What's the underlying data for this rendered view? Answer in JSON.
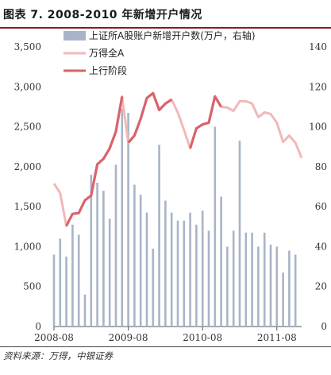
{
  "title": "图表 7. 2008-2010 年新增开户情况",
  "source": "资料来源：万得，中银证券",
  "chart_data": {
    "type": "bar+line",
    "x_tick_labels": [
      "2008-08",
      "2009-08",
      "2010-08",
      "2011-08"
    ],
    "left_axis": {
      "ylim": [
        0,
        3500
      ],
      "ticks": [
        "0",
        "500",
        "1,000",
        "1,500",
        "2,000",
        "2,500",
        "3,000",
        "3,500"
      ]
    },
    "right_axis": {
      "ylim": [
        0,
        140
      ],
      "ticks": [
        "0",
        "20",
        "40",
        "60",
        "80",
        "100",
        "120",
        "140"
      ]
    },
    "legend": [
      {
        "key": "bars",
        "label": "上证所A股账户新增开户数(万户，右轴)",
        "color": "#a8b4c8"
      },
      {
        "key": "wind",
        "label": "万得全A",
        "color": "#f2b8b8"
      },
      {
        "key": "up",
        "label": "上行阶段",
        "color": "#d9636b"
      }
    ],
    "bars_series": {
      "name": "上证所A股账户新增开户数(万户，右轴)",
      "unit": "万户",
      "values": [
        36,
        44,
        35,
        51,
        46,
        16,
        76,
        72,
        68,
        54,
        81,
        109,
        107,
        71,
        66,
        57,
        39,
        91,
        63,
        57,
        53,
        53,
        57,
        51,
        58,
        48,
        100,
        65,
        40,
        48,
        93,
        47,
        47,
        40,
        47,
        41,
        40,
        27,
        38,
        36
      ]
    },
    "wind_series": {
      "name": "万得全A",
      "values": [
        1790,
        1670,
        1260,
        1410,
        1420,
        1580,
        1640,
        2030,
        2100,
        2230,
        2440,
        2880,
        2300,
        2390,
        2600,
        2860,
        2920,
        2710,
        2790,
        2840,
        2680,
        2460,
        2230,
        2480,
        2530,
        2550,
        2880,
        2750,
        2740,
        2700,
        2820,
        2820,
        2790,
        2620,
        2680,
        2660,
        2550,
        2310,
        2390,
        2300,
        2110
      ]
    },
    "up_ranges": [
      [
        2,
        11
      ],
      [
        12,
        19
      ],
      [
        22,
        27
      ]
    ]
  }
}
